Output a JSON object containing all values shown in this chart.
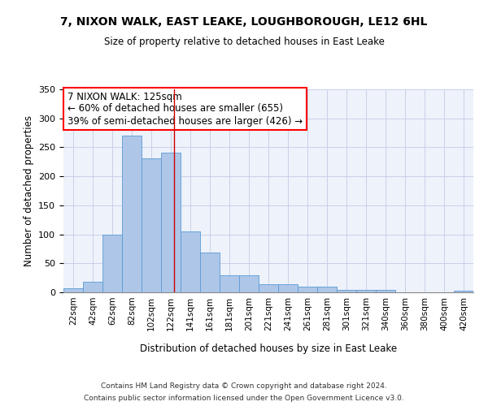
{
  "title": "7, NIXON WALK, EAST LEAKE, LOUGHBOROUGH, LE12 6HL",
  "subtitle": "Size of property relative to detached houses in East Leake",
  "xlabel": "Distribution of detached houses by size in East Leake",
  "ylabel": "Number of detached properties",
  "bar_labels": [
    "22sqm",
    "42sqm",
    "62sqm",
    "82sqm",
    "102sqm",
    "122sqm",
    "141sqm",
    "161sqm",
    "181sqm",
    "201sqm",
    "221sqm",
    "241sqm",
    "261sqm",
    "281sqm",
    "301sqm",
    "321sqm",
    "340sqm",
    "360sqm",
    "380sqm",
    "400sqm",
    "420sqm"
  ],
  "bar_values": [
    7,
    18,
    99,
    270,
    231,
    241,
    105,
    68,
    30,
    30,
    14,
    14,
    10,
    10,
    4,
    4,
    4,
    0,
    0,
    0,
    3
  ],
  "bar_color": "#aec6e8",
  "bar_edge_color": "#5a9bd5",
  "annotation_text": "7 NIXON WALK: 125sqm\n← 60% of detached houses are smaller (655)\n39% of semi-detached houses are larger (426) →",
  "vline_color": "#cc0000",
  "vline_x_index": 5.15,
  "ylim": [
    0,
    350
  ],
  "yticks": [
    0,
    50,
    100,
    150,
    200,
    250,
    300,
    350
  ],
  "bg_color": "#eef2fb",
  "grid_color": "#c8d0e8",
  "footnote1": "Contains HM Land Registry data © Crown copyright and database right 2024.",
  "footnote2": "Contains public sector information licensed under the Open Government Licence v3.0."
}
